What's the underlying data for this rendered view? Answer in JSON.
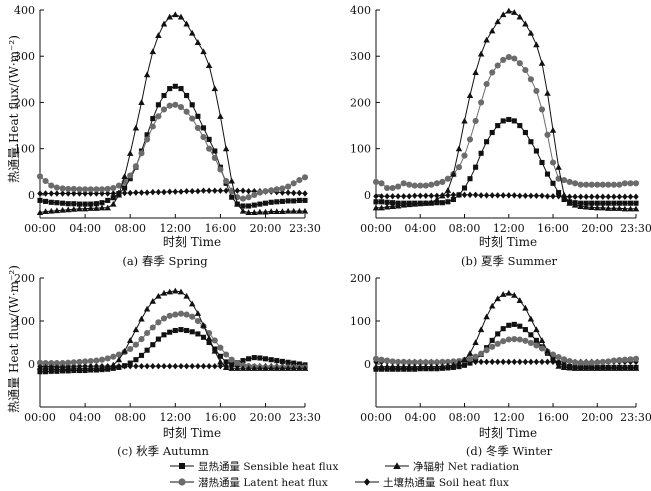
{
  "ylabel": "热通量 Heat flux/(W·m⁻²)",
  "xlabel": "时刻 Time",
  "legend": [
    {
      "key": "sensible",
      "text": "显热通量 Sensible heat flux",
      "marker": "square"
    },
    {
      "key": "net",
      "text": "净辐射 Net radiation",
      "marker": "triangle"
    },
    {
      "key": "latent",
      "text": "潜热通量 Latent heat flux",
      "marker": "circle"
    },
    {
      "key": "soil",
      "text": "土壤热通量 Soil heat flux",
      "marker": "diamond"
    }
  ],
  "colors": {
    "sensible": "#111111",
    "latent": "#6b6b6b",
    "net": "#111111",
    "soil": "#111111"
  },
  "chart_data": [
    {
      "type": "line",
      "caption": "(a) 春季 Spring",
      "xticklabels": [
        "00:00",
        "04:00",
        "08:00",
        "12:00",
        "16:00",
        "20:00",
        "23:30"
      ],
      "yticks": [
        0,
        100,
        200,
        300,
        400
      ],
      "ylim": [
        -50,
        400
      ],
      "series": [
        {
          "key": "sensible",
          "name": "显热通量 Sensible heat flux",
          "values": [
            -12,
            -14,
            -16,
            -17,
            -18,
            -19,
            -19,
            -20,
            -20,
            -20,
            -19,
            -17,
            -12,
            -6,
            3,
            15,
            35,
            60,
            95,
            130,
            165,
            195,
            215,
            230,
            235,
            230,
            215,
            195,
            170,
            145,
            120,
            95,
            60,
            25,
            -5,
            -20,
            -24,
            -24,
            -22,
            -20,
            -18,
            -16,
            -15,
            -14,
            -13,
            -13,
            -12,
            -12
          ]
        },
        {
          "key": "latent",
          "name": "潜热通量 Latent heat flux",
          "values": [
            40,
            30,
            20,
            16,
            14,
            13,
            13,
            12,
            12,
            12,
            12,
            12,
            13,
            15,
            20,
            28,
            42,
            62,
            90,
            120,
            148,
            170,
            185,
            193,
            195,
            190,
            180,
            165,
            145,
            125,
            100,
            80,
            55,
            30,
            8,
            -5,
            -8,
            -5,
            0,
            5,
            8,
            10,
            12,
            14,
            18,
            25,
            32,
            38
          ]
        },
        {
          "key": "net",
          "name": "净辐射 Net radiation",
          "values": [
            -38,
            -36,
            -35,
            -34,
            -33,
            -32,
            -31,
            -30,
            -30,
            -29,
            -29,
            -28,
            -28,
            -20,
            0,
            40,
            90,
            145,
            200,
            260,
            310,
            345,
            370,
            385,
            390,
            385,
            370,
            350,
            330,
            310,
            280,
            230,
            170,
            100,
            30,
            -20,
            -35,
            -38,
            -38,
            -37,
            -37,
            -36,
            -36,
            -36,
            -35,
            -35,
            -35,
            -35
          ]
        },
        {
          "key": "soil",
          "name": "土壤热通量 Soil heat flux",
          "values": [
            3,
            3,
            3,
            3,
            3,
            3,
            3,
            3,
            3,
            3,
            3,
            3,
            3,
            3,
            4,
            4,
            4,
            5,
            5,
            5,
            6,
            6,
            6,
            7,
            7,
            7,
            8,
            8,
            8,
            9,
            9,
            9,
            9,
            9,
            9,
            9,
            9,
            8,
            8,
            8,
            7,
            7,
            6,
            5,
            5,
            4,
            4,
            3
          ]
        }
      ]
    },
    {
      "type": "line",
      "caption": "(b) 夏季 Summer",
      "xticklabels": [
        "00:00",
        "04:00",
        "08:00",
        "12:00",
        "16:00",
        "20:00",
        "23:30"
      ],
      "yticks": [
        0,
        100,
        200,
        300,
        400
      ],
      "ylim": [
        -50,
        400
      ],
      "series": [
        {
          "key": "sensible",
          "name": "显热通量 Sensible heat flux",
          "values": [
            -15,
            -15,
            -16,
            -17,
            -18,
            -18,
            -18,
            -18,
            -18,
            -18,
            -18,
            -17,
            -17,
            -15,
            -10,
            0,
            15,
            35,
            60,
            90,
            115,
            135,
            150,
            160,
            163,
            160,
            150,
            135,
            115,
            95,
            70,
            45,
            25,
            5,
            -10,
            -15,
            -17,
            -18,
            -18,
            -18,
            -18,
            -18,
            -18,
            -18,
            -18,
            -18,
            -18,
            -18
          ]
        },
        {
          "key": "latent",
          "name": "潜热通量 Latent heat flux",
          "values": [
            28,
            25,
            15,
            15,
            18,
            25,
            22,
            20,
            20,
            20,
            22,
            25,
            28,
            35,
            45,
            60,
            85,
            120,
            160,
            200,
            240,
            265,
            280,
            292,
            298,
            295,
            285,
            270,
            250,
            225,
            185,
            130,
            70,
            35,
            32,
            28,
            25,
            22,
            22,
            22,
            22,
            22,
            22,
            22,
            22,
            25,
            25,
            25
          ]
        },
        {
          "key": "net",
          "name": "净辐射 Net radiation",
          "values": [
            -28,
            -28,
            -26,
            -25,
            -24,
            -22,
            -21,
            -20,
            -19,
            -18,
            -16,
            -10,
            -2,
            10,
            45,
            100,
            160,
            215,
            265,
            305,
            335,
            355,
            375,
            390,
            398,
            395,
            385,
            370,
            350,
            325,
            285,
            220,
            140,
            60,
            0,
            -18,
            -22,
            -25,
            -26,
            -27,
            -28,
            -28,
            -29,
            -29,
            -29,
            -30,
            -30,
            -30
          ]
        },
        {
          "key": "soil",
          "name": "土壤热通量 Soil heat flux",
          "values": [
            -3,
            -3,
            -3,
            -3,
            -3,
            -3,
            -3,
            -2,
            -2,
            -2,
            -2,
            -2,
            -1,
            -1,
            0,
            0,
            0,
            0,
            0,
            -1,
            -1,
            -1,
            -1,
            -1,
            -1,
            -1,
            -2,
            -2,
            -2,
            -2,
            -2,
            -3,
            -3,
            -3,
            -3,
            -4,
            -4,
            -4,
            -4,
            -4,
            -4,
            -4,
            -4,
            -4,
            -4,
            -4,
            -4,
            -4
          ]
        }
      ]
    },
    {
      "type": "line",
      "caption": "(c) 秋季 Autumn",
      "xticklabels": [
        "00:00",
        "04:00",
        "08:00",
        "12:00",
        "16:00",
        "20:00",
        "23:30"
      ],
      "yticks": [
        0,
        100,
        200
      ],
      "ylim": [
        -100,
        200
      ],
      "series": [
        {
          "key": "sensible",
          "name": "显热通量 Sensible heat flux",
          "values": [
            -18,
            -18,
            -17,
            -17,
            -16,
            -16,
            -15,
            -15,
            -15,
            -14,
            -14,
            -13,
            -12,
            -10,
            -8,
            -4,
            2,
            10,
            20,
            32,
            45,
            58,
            68,
            74,
            78,
            80,
            78,
            75,
            70,
            62,
            50,
            35,
            18,
            5,
            0,
            3,
            8,
            12,
            15,
            14,
            12,
            10,
            8,
            6,
            4,
            2,
            0,
            -2
          ]
        },
        {
          "key": "latent",
          "name": "潜热通量 Latent heat flux",
          "values": [
            3,
            2,
            2,
            2,
            2,
            3,
            4,
            5,
            6,
            7,
            8,
            10,
            13,
            17,
            22,
            28,
            35,
            45,
            58,
            72,
            85,
            97,
            106,
            112,
            115,
            117,
            115,
            110,
            100,
            88,
            72,
            55,
            38,
            22,
            10,
            2,
            -3,
            -5,
            -6,
            -7,
            -8,
            -8,
            -8,
            -8,
            -8,
            -8,
            -8,
            -8
          ]
        },
        {
          "key": "net",
          "name": "净辐射 Net radiation",
          "values": [
            -7,
            -7,
            -7,
            -8,
            -8,
            -9,
            -9,
            -10,
            -10,
            -10,
            -10,
            -10,
            -8,
            -2,
            10,
            30,
            55,
            80,
            105,
            128,
            146,
            158,
            165,
            168,
            170,
            168,
            158,
            140,
            118,
            90,
            60,
            30,
            5,
            -8,
            -10,
            -10,
            -10,
            -10,
            -10,
            -10,
            -10,
            -10,
            -10,
            -10,
            -10,
            -10,
            -10,
            -10
          ]
        },
        {
          "key": "soil",
          "name": "土壤热通量 Soil heat flux",
          "values": [
            -5,
            -5,
            -5,
            -5,
            -5,
            -5,
            -5,
            -5,
            -5,
            -5,
            -5,
            -5,
            -5,
            -5,
            -5,
            -5,
            -5,
            -5,
            -5,
            -5,
            -5,
            -5,
            -5,
            -5,
            -5,
            -5,
            -5,
            -5,
            -5,
            -5,
            -5,
            -5,
            -5,
            -5,
            -5,
            -5,
            -5,
            -5,
            -5,
            -5,
            -5,
            -5,
            -5,
            -5,
            -5,
            -5,
            -5,
            -5
          ]
        }
      ]
    },
    {
      "type": "line",
      "caption": "(d) 冬季 Winter",
      "xticklabels": [
        "00:00",
        "04:00",
        "08:00",
        "12:00",
        "16:00",
        "20:00",
        "23:30"
      ],
      "yticks": [
        0,
        100,
        200
      ],
      "ylim": [
        -100,
        200
      ],
      "series": [
        {
          "key": "sensible",
          "name": "显热通量 Sensible heat flux",
          "values": [
            -12,
            -12,
            -12,
            -12,
            -12,
            -12,
            -12,
            -12,
            -11,
            -11,
            -11,
            -11,
            -10,
            -9,
            -8,
            -6,
            -3,
            2,
            10,
            22,
            38,
            55,
            70,
            82,
            90,
            92,
            88,
            80,
            68,
            55,
            40,
            25,
            12,
            2,
            -4,
            -6,
            -7,
            -7,
            -7,
            -7,
            -8,
            -8,
            -8,
            -8,
            -8,
            -8,
            -8,
            -8
          ]
        },
        {
          "key": "latent",
          "name": "潜热通量 Latent heat flux",
          "values": [
            12,
            10,
            8,
            6,
            5,
            5,
            4,
            4,
            4,
            4,
            4,
            4,
            5,
            5,
            6,
            7,
            9,
            12,
            17,
            24,
            32,
            40,
            47,
            53,
            57,
            58,
            57,
            54,
            49,
            43,
            36,
            29,
            22,
            16,
            11,
            7,
            4,
            3,
            3,
            3,
            4,
            5,
            6,
            8,
            9,
            10,
            11,
            12
          ]
        },
        {
          "key": "net",
          "name": "净辐射 Net radiation",
          "values": [
            -6,
            -6,
            -6,
            -6,
            -6,
            -6,
            -6,
            -6,
            -6,
            -6,
            -6,
            -6,
            -5,
            -4,
            -2,
            2,
            10,
            25,
            50,
            80,
            110,
            135,
            152,
            162,
            165,
            160,
            148,
            130,
            105,
            80,
            55,
            30,
            10,
            -5,
            -8,
            -9,
            -10,
            -10,
            -10,
            -10,
            -10,
            -10,
            -10,
            -10,
            -10,
            -10,
            -10,
            -10
          ]
        },
        {
          "key": "soil",
          "name": "土壤热通量 Soil heat flux",
          "values": [
            5,
            5,
            5,
            5,
            5,
            5,
            5,
            5,
            5,
            5,
            5,
            5,
            5,
            5,
            5,
            5,
            5,
            5,
            5,
            5,
            5,
            5,
            5,
            5,
            5,
            5,
            5,
            5,
            5,
            5,
            5,
            5,
            5,
            5,
            5,
            5,
            5,
            5,
            5,
            5,
            5,
            5,
            5,
            5,
            5,
            5,
            5,
            5
          ]
        }
      ]
    }
  ]
}
